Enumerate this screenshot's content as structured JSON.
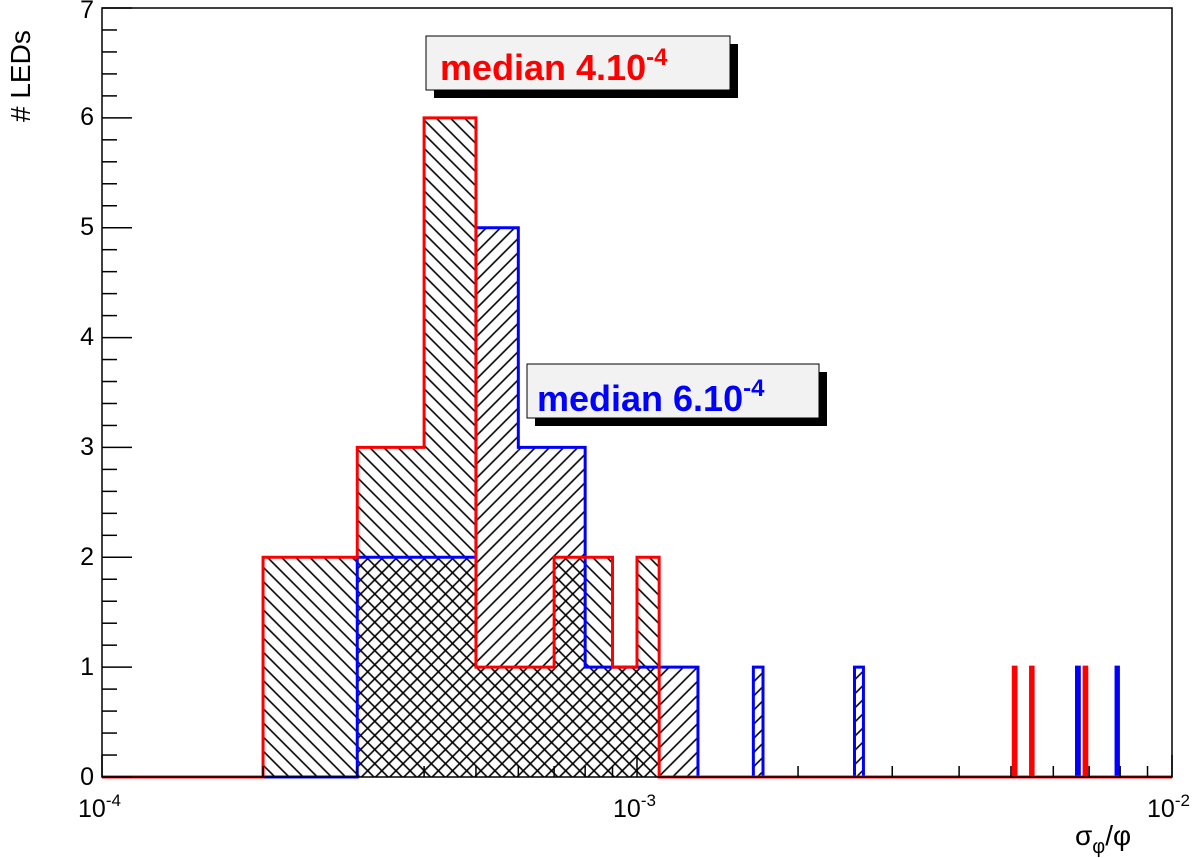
{
  "chart_data": {
    "type": "bar",
    "subtype": "histogram",
    "xlabel": "σφ/φ",
    "xlabel_main": "σ",
    "xlabel_sub": "φ",
    "xlabel_tail": "/φ",
    "ylabel": "# LEDs",
    "xscale": "log",
    "xlim": [
      0.0001,
      0.01
    ],
    "ylim": [
      0,
      7
    ],
    "x_tick_labels": [
      {
        "base": "10",
        "exp": "-4"
      },
      {
        "base": "10",
        "exp": "-3"
      },
      {
        "base": "10",
        "exp": "-2"
      }
    ],
    "y_tick_labels": [
      "0",
      "1",
      "2",
      "3",
      "4",
      "5",
      "6",
      "7"
    ],
    "series": [
      {
        "name": "blue",
        "color": "#0000ff",
        "hatch": "forward",
        "bins": [
          {
            "lo": 0.0003,
            "hi": 0.0005,
            "count": 2
          },
          {
            "lo": 0.0005,
            "hi": 0.0006,
            "count": 5
          },
          {
            "lo": 0.0006,
            "hi": 0.0008,
            "count": 3
          },
          {
            "lo": 0.0008,
            "hi": 0.0013,
            "count": 1
          },
          {
            "lo": 0.00165,
            "hi": 0.00172,
            "count": 1
          },
          {
            "lo": 0.00255,
            "hi": 0.00265,
            "count": 1
          },
          {
            "lo": 0.00663,
            "hi": 0.00671,
            "count": 1
          },
          {
            "lo": 0.00786,
            "hi": 0.00794,
            "count": 1
          }
        ]
      },
      {
        "name": "red",
        "color": "#ff0000",
        "hatch": "backward",
        "bins": [
          {
            "lo": 0.0002,
            "hi": 0.0003,
            "count": 2
          },
          {
            "lo": 0.0003,
            "hi": 0.0004,
            "count": 3
          },
          {
            "lo": 0.0004,
            "hi": 0.0005,
            "count": 6
          },
          {
            "lo": 0.0005,
            "hi": 0.0007,
            "count": 1
          },
          {
            "lo": 0.0007,
            "hi": 0.0009,
            "count": 2
          },
          {
            "lo": 0.0009,
            "hi": 0.001,
            "count": 1
          },
          {
            "lo": 0.001,
            "hi": 0.0011,
            "count": 2
          },
          {
            "lo": 0.00505,
            "hi": 0.00511,
            "count": 1
          },
          {
            "lo": 0.00544,
            "hi": 0.0055,
            "count": 1
          },
          {
            "lo": 0.00685,
            "hi": 0.00693,
            "count": 1
          }
        ]
      }
    ],
    "annotations": [
      {
        "name": "red-median",
        "text": "median 4.10",
        "exp": "-4",
        "color": "#ff0000"
      },
      {
        "name": "blue-median",
        "text": "median 6.10",
        "exp": "-4",
        "color": "#0000ff"
      }
    ]
  }
}
